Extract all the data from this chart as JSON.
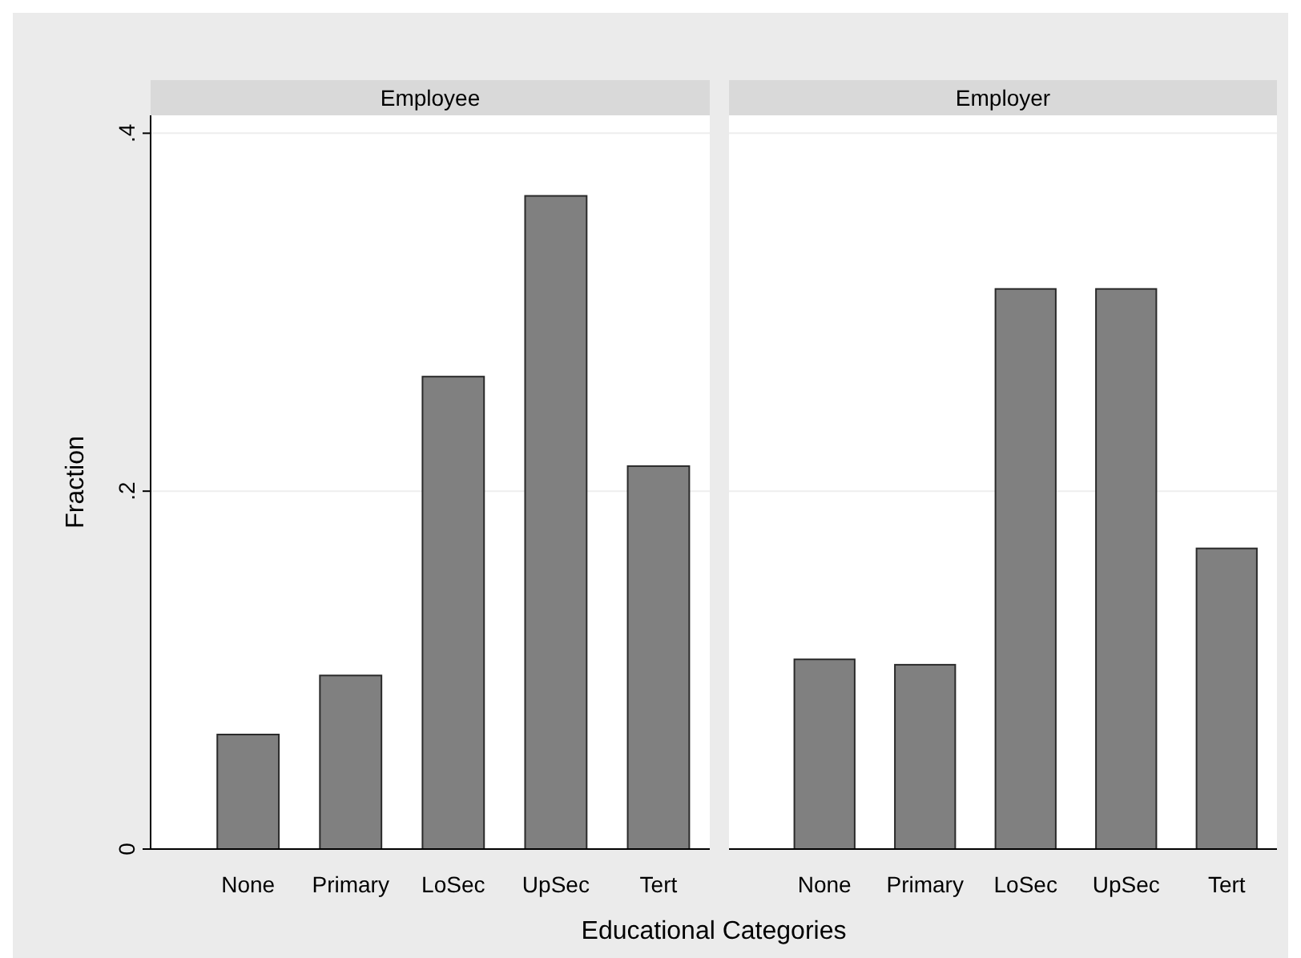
{
  "chart_data": [
    {
      "type": "bar",
      "title": "Employee",
      "ylabel": "Fraction",
      "xlabel": "Educational Categories",
      "categories": [
        "None",
        "Primary",
        "LoSec",
        "UpSec",
        "Tert"
      ],
      "values": [
        0.064,
        0.097,
        0.264,
        0.365,
        0.214
      ],
      "color": "#808080",
      "ylim": [
        0,
        0.41
      ],
      "yticks": [
        {
          "value": 0,
          "label": "0"
        },
        {
          "value": 0.2,
          "label": ".2"
        },
        {
          "value": 0.4,
          "label": ".4"
        }
      ],
      "grid": "y"
    },
    {
      "type": "bar",
      "title": "Employer",
      "categories": [
        "None",
        "Primary",
        "LoSec",
        "UpSec",
        "Tert"
      ],
      "values": [
        0.106,
        0.103,
        0.313,
        0.313,
        0.168
      ],
      "color": "#808080",
      "ylim": [
        0,
        0.41
      ],
      "yticks": [
        {
          "value": 0,
          "label": null
        },
        {
          "value": 0.2,
          "label": null
        },
        {
          "value": 0.4,
          "label": null
        }
      ],
      "grid": "y",
      "tick_labels": "x"
    }
  ]
}
